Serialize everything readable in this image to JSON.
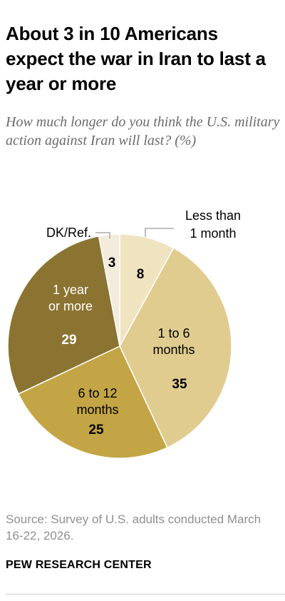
{
  "header": {
    "title": "About 3 in 10 Americans expect the war in Iran to last a year or more",
    "subtitle": "How much longer do you think the U.S. military action against Iran will last? (%)"
  },
  "chart_data": {
    "type": "pie",
    "title": "About 3 in 10 Americans expect the war in Iran to last a year or more",
    "subtitle": "How much longer do you think the U.S. military action against Iran will last? (%)",
    "unit": "%",
    "start_angle_deg": 0,
    "direction": "clockwise",
    "slices": [
      {
        "label": "Less than 1 month",
        "label_lines": [
          "Less than",
          "1 month"
        ],
        "value": 8,
        "color": "#f0e3c0",
        "label_placement": "outside"
      },
      {
        "label": "1 to 6 months",
        "label_lines": [
          "1 to 6",
          "months"
        ],
        "value": 35,
        "color": "#e0cc8f",
        "label_placement": "inside"
      },
      {
        "label": "6 to 12 months",
        "label_lines": [
          "6 to 12",
          "months"
        ],
        "value": 25,
        "color": "#c3a545",
        "label_placement": "inside"
      },
      {
        "label": "1 year or more",
        "label_lines": [
          "1 year",
          "or more"
        ],
        "value": 29,
        "color": "#8b7332",
        "label_placement": "inside"
      },
      {
        "label": "DK/Ref.",
        "label_lines": [
          "DK/Ref."
        ],
        "value": 3,
        "color": "#f3ecdc",
        "label_placement": "outside"
      }
    ]
  },
  "footer": {
    "source": "Source: Survey of U.S. adults conducted March 16-22, 2026.",
    "org": "PEW RESEARCH CENTER"
  }
}
